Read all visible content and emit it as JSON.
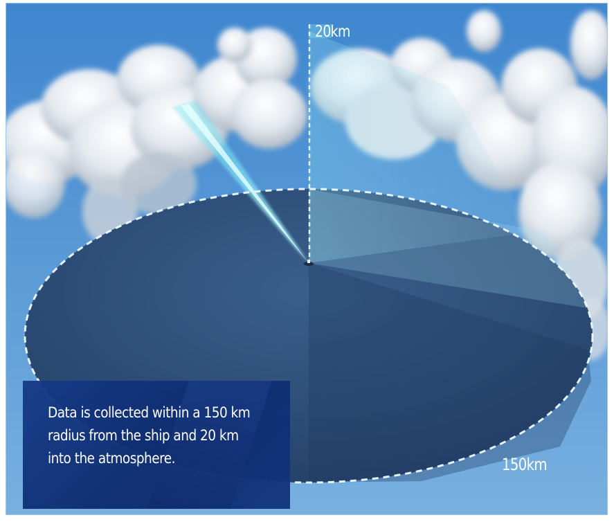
{
  "caption": {
    "text": "Data is collected within a 150 km\nradius from the ship and 20 km\ninto the atmosphere."
  },
  "labels": {
    "radius": "150km",
    "altitude": "20km"
  },
  "colors": {
    "sky": "#5d9dd6",
    "sea": "#2a4a73",
    "caption_background": "#123a8a",
    "coverage_beam": "#6fe6f5",
    "dashed_outline": "#e6f5ff"
  }
}
